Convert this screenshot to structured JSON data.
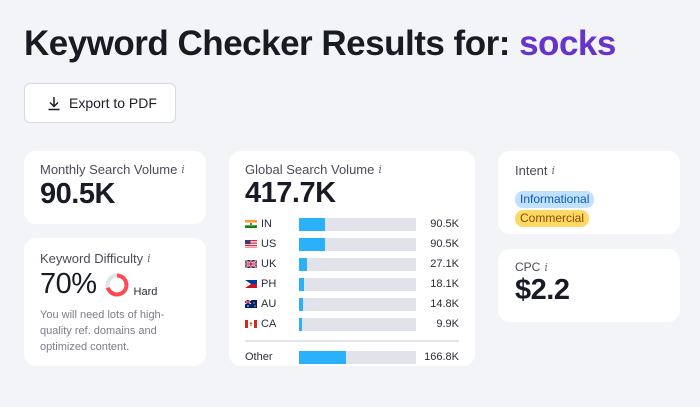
{
  "header": {
    "title_prefix": "Keyword Checker Results for: ",
    "keyword": "socks"
  },
  "toolbar": {
    "export_label": "Export to PDF",
    "export_icon": "download-icon"
  },
  "monthly_search_volume": {
    "label": "Monthly Search Volume",
    "info_icon": "i",
    "value": "90.5K"
  },
  "keyword_difficulty": {
    "label": "Keyword Difficulty",
    "info_icon": "i",
    "value": "70%",
    "percent": 70,
    "level": "Hard",
    "description": "You will need lots of high-quality ref. domains and optimized content.",
    "ring_color": "#ff4953",
    "ring_track_color": "#e1e2ea"
  },
  "global_search_volume": {
    "label": "Global Search Volume",
    "info_icon": "i",
    "value": "417.7K",
    "bar_color": "#2bb0fb",
    "countries": [
      {
        "code": "IN",
        "value": "90.5K",
        "percent": 22
      },
      {
        "code": "US",
        "value": "90.5K",
        "percent": 22
      },
      {
        "code": "UK",
        "value": "27.1K",
        "percent": 6.5
      },
      {
        "code": "PH",
        "value": "18.1K",
        "percent": 4.3
      },
      {
        "code": "AU",
        "value": "14.8K",
        "percent": 3.5
      },
      {
        "code": "CA",
        "value": "9.9K",
        "percent": 2.4
      }
    ],
    "other": {
      "label": "Other",
      "value": "166.8K",
      "percent": 40
    }
  },
  "intent": {
    "label": "Intent",
    "info_icon": "i",
    "badges": [
      {
        "label": "Informational",
        "bg": "#c2e0ff",
        "fg": "#0a5bb5"
      },
      {
        "label": "Commercial",
        "bg": "#ffd966",
        "fg": "#8a4a00"
      }
    ]
  },
  "cpc": {
    "label": "CPC",
    "info_icon": "i",
    "value": "$2.2"
  }
}
